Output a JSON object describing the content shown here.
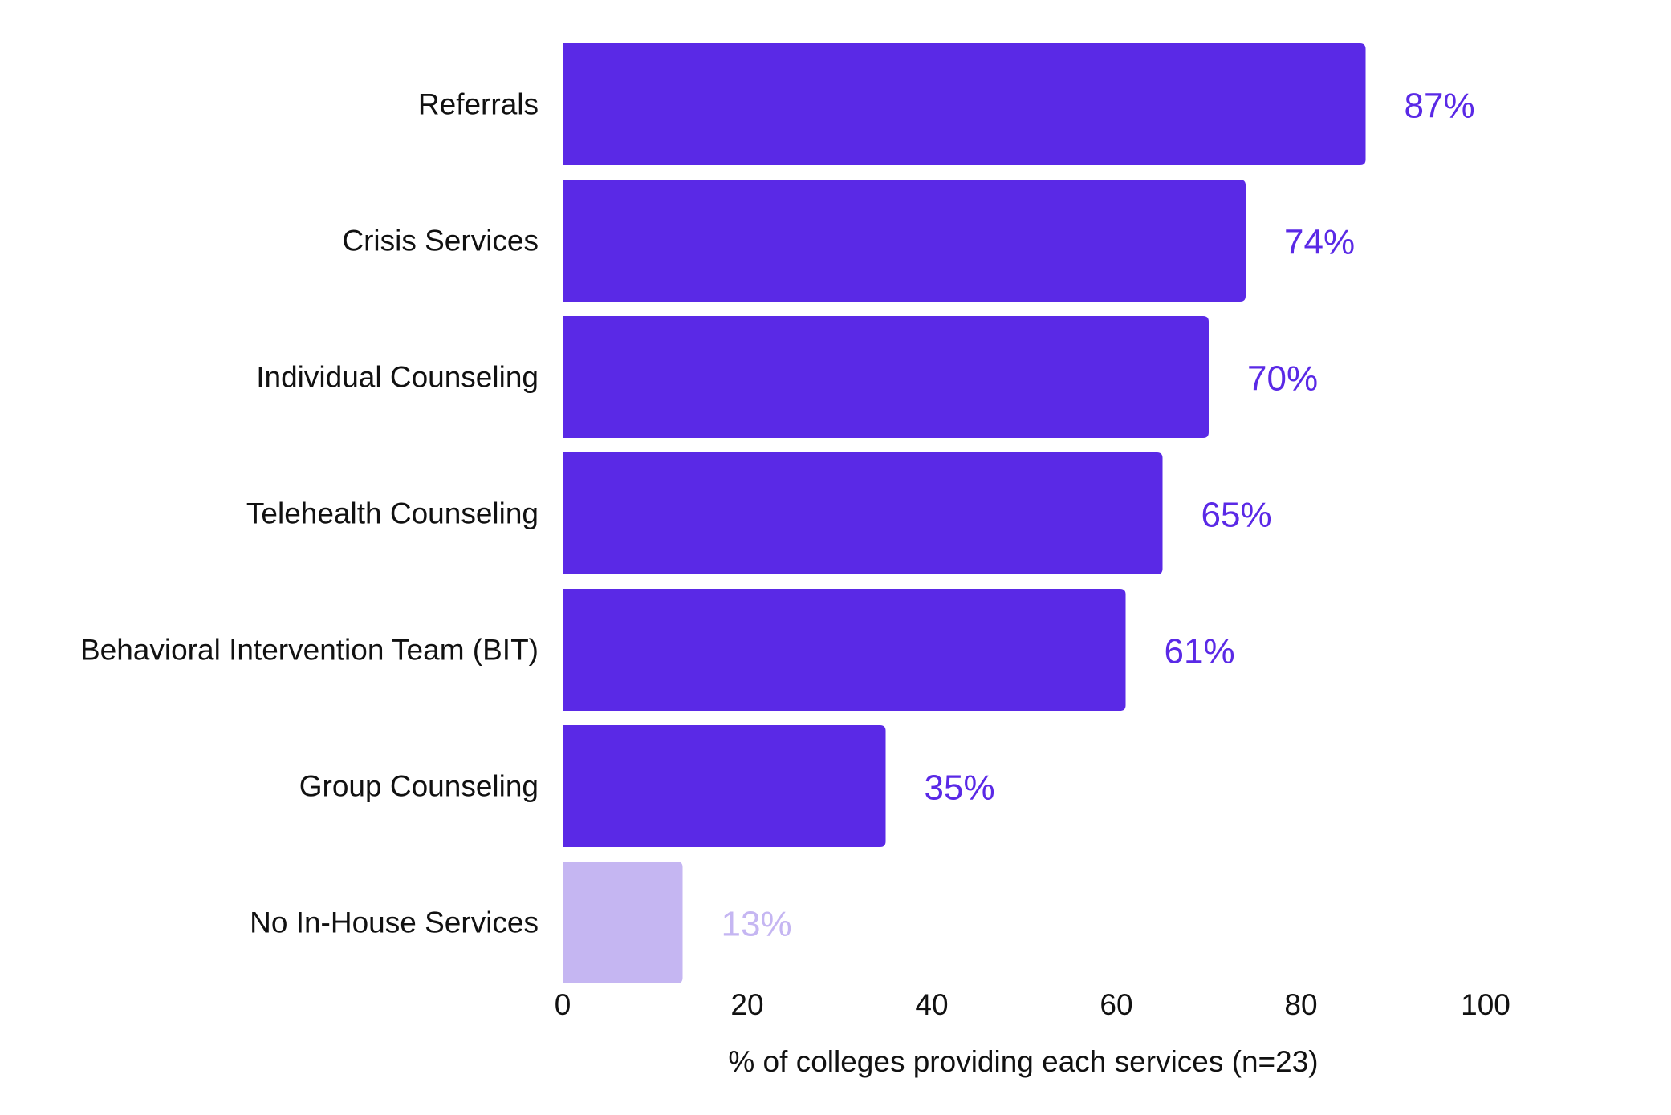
{
  "chart_data": {
    "type": "bar",
    "orientation": "horizontal",
    "categories": [
      "Referrals",
      "Crisis Services",
      "Individual Counseling",
      "Telehealth Counseling",
      "Behavioral Intervention Team (BIT)",
      "Group Counseling",
      "No In-House Services"
    ],
    "values": [
      87,
      74,
      70,
      65,
      61,
      35,
      13
    ],
    "value_labels": [
      "87%",
      "74%",
      "70%",
      "65%",
      "61%",
      "35%",
      "13%"
    ],
    "bar_colors": [
      "#5a29e6",
      "#5a29e6",
      "#5a29e6",
      "#5a29e6",
      "#5a29e6",
      "#5a29e6",
      "#c5b6f2"
    ],
    "title": "",
    "xlabel": "% of colleges providing each services (n=23)",
    "ylabel": "",
    "xlim": [
      0,
      100
    ],
    "xticks": [
      0,
      20,
      40,
      60,
      80,
      100
    ],
    "grid": false,
    "legend": "none"
  }
}
